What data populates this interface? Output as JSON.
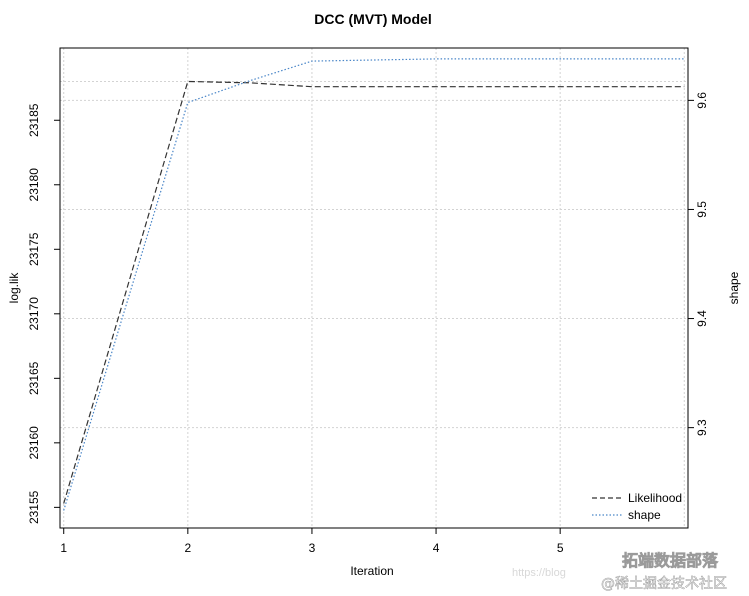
{
  "chart_data": {
    "type": "line",
    "title": "DCC (MVT) Model",
    "xlabel": "Iteration",
    "ylabel_left": "log.lik",
    "ylabel_right": "shape",
    "x": [
      1,
      2,
      2.5,
      3,
      4,
      5,
      6
    ],
    "xticks": [
      1,
      2,
      3,
      4,
      5
    ],
    "xlim": [
      0.97,
      6.03
    ],
    "left_axis": {
      "ticks": [
        23155,
        23160,
        23165,
        23170,
        23175,
        23180,
        23185
      ],
      "ylim": [
        23153.4,
        23190.6
      ]
    },
    "right_axis": {
      "ticks": [
        9.3,
        9.4,
        9.5,
        9.6
      ],
      "ylim": [
        9.208,
        9.648
      ]
    },
    "series": [
      {
        "name": "Likelihood",
        "axis": "left",
        "style": "dashed",
        "color": "#333333",
        "values": [
          23155.3,
          23188.0,
          23187.9,
          23187.6,
          23187.6,
          23187.6,
          23187.6
        ]
      },
      {
        "name": "shape",
        "axis": "right",
        "style": "dotted",
        "color": "#4a86c8",
        "values": [
          9.224,
          9.598,
          9.618,
          9.636,
          9.638,
          9.638,
          9.638
        ]
      }
    ],
    "grid": true,
    "legend_position": "bottom-right"
  },
  "watermark": {
    "url_fragment": "https://blog",
    "brand": "拓端数据部落",
    "community": "@稀土掘金技术社区"
  }
}
